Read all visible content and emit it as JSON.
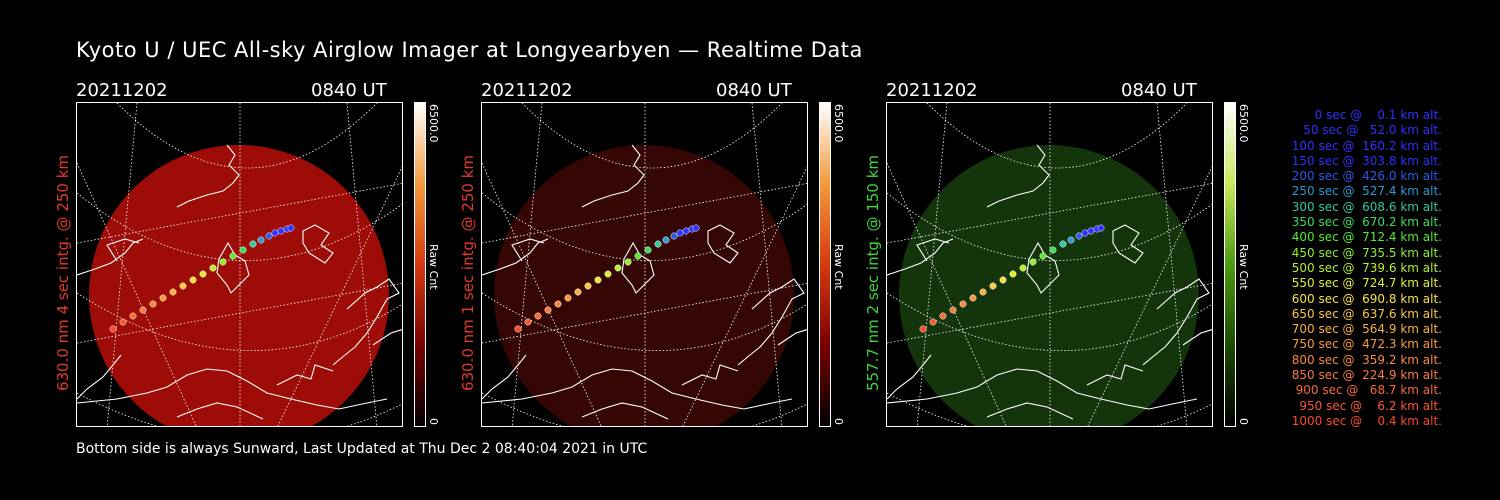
{
  "title": "Kyoto U / UEC All-sky Airglow Imager at Longyearbyen — Realtime Data",
  "panels": [
    {
      "date": "20211202",
      "time": "0840 UT",
      "ylabel": "630.0 nm 4 sec intg. @ 250 km",
      "label_color": "#e23a2a",
      "cb_max": "6500.0",
      "cb_min": "0",
      "cb_unit": "Raw Cnt",
      "fill": "#b80e08",
      "fill_opacity": 0.85,
      "cbar": [
        "#ffffff",
        "#f29a3c",
        "#d63a10",
        "#7a0000",
        "#000000"
      ]
    },
    {
      "date": "20211202",
      "time": "0840 UT",
      "ylabel": "630.0 nm 1 sec intg. @ 250 km",
      "label_color": "#e23a2a",
      "cb_max": "6500.0",
      "cb_min": "0",
      "cb_unit": "Raw Cnt",
      "fill": "#3a0806",
      "fill_opacity": 0.9,
      "cbar": [
        "#ffffff",
        "#f29a3c",
        "#d63a10",
        "#7a0000",
        "#000000"
      ]
    },
    {
      "date": "20211202",
      "time": "0840 UT",
      "ylabel": "557.7 nm 2 sec intg. @ 150 km",
      "label_color": "#3ed63a",
      "cb_max": "6500.0",
      "cb_min": "0",
      "cb_unit": "Raw Cnt",
      "fill": "#163a0c",
      "fill_opacity": 0.9,
      "cbar": [
        "#ffffff",
        "#c8e858",
        "#4c9a10",
        "#1c4a04",
        "#000000"
      ]
    }
  ],
  "footer": "Bottom side is always Sunward, Last Updated at Thu Dec  2 08:40:04 2021 in UTC",
  "legend": [
    {
      "text": "   0 sec @    0.1 km alt.",
      "color": "#3030ff"
    },
    {
      "text": "  50 sec @   52.0 km alt.",
      "color": "#3030ff"
    },
    {
      "text": " 100 sec @  160.2 km alt.",
      "color": "#3030ff"
    },
    {
      "text": " 150 sec @  303.8 km alt.",
      "color": "#3030ff"
    },
    {
      "text": " 200 sec @  426.0 km alt.",
      "color": "#2a5ae8"
    },
    {
      "text": " 250 sec @  527.4 km alt.",
      "color": "#2a9ad0"
    },
    {
      "text": " 300 sec @  608.6 km alt.",
      "color": "#30c8a0"
    },
    {
      "text": " 350 sec @  670.2 km alt.",
      "color": "#3ade5a"
    },
    {
      "text": " 400 sec @  712.4 km alt.",
      "color": "#5aea30"
    },
    {
      "text": " 450 sec @  735.5 km alt.",
      "color": "#8ef030"
    },
    {
      "text": " 500 sec @  739.6 km alt.",
      "color": "#b8f030"
    },
    {
      "text": " 550 sec @  724.7 km alt.",
      "color": "#e0ee30"
    },
    {
      "text": " 600 sec @  690.8 km alt.",
      "color": "#f8e040"
    },
    {
      "text": " 650 sec @  637.6 km alt.",
      "color": "#f8c840"
    },
    {
      "text": " 700 sec @  564.9 km alt.",
      "color": "#f8b040"
    },
    {
      "text": " 750 sec @  472.3 km alt.",
      "color": "#f89a40"
    },
    {
      "text": " 800 sec @  359.2 km alt.",
      "color": "#f88a40"
    },
    {
      "text": " 850 sec @  224.9 km alt.",
      "color": "#f87a40"
    },
    {
      "text": " 900 sec @   68.7 km alt.",
      "color": "#f86a38"
    },
    {
      "text": " 950 sec @    6.2 km alt.",
      "color": "#f85a30"
    },
    {
      "text": "1000 sec @    0.4 km alt.",
      "color": "#f84a28"
    }
  ]
}
